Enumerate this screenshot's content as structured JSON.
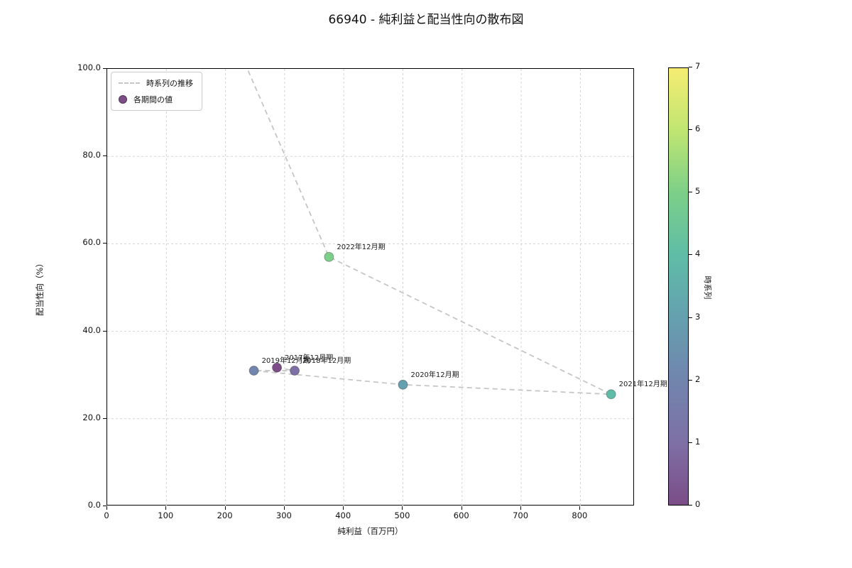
{
  "title": "66940 - 純利益と配当性向の散布図",
  "chart_data": {
    "type": "scatter",
    "title": "66940 - 純利益と配当性向の散布図",
    "xlabel": "純利益（百万円）",
    "ylabel": "配当性向（%）",
    "xlim": [
      0,
      892
    ],
    "ylim": [
      0,
      100
    ],
    "xticks": [
      0,
      100,
      200,
      300,
      400,
      500,
      600,
      700,
      800
    ],
    "yticks": [
      0,
      20,
      40,
      60,
      80,
      100
    ],
    "ytick_labels": [
      "0.0",
      "20.0",
      "40.0",
      "60.0",
      "80.0",
      "100.0"
    ],
    "grid": true,
    "grid_color": "#d4d4d4",
    "line_color": "#c6c6c6",
    "marker_edge_color": "rgba(0,0,0,0.28)",
    "legend": {
      "line_label": "時系列の推移",
      "point_label": "各期間の値",
      "position": "upper left"
    },
    "points": [
      {
        "label": "2017年12月期",
        "x": 287,
        "y": 31.7,
        "t": 0,
        "color": "#7c4d87"
      },
      {
        "label": "2018年12月期",
        "x": 317,
        "y": 31.0,
        "t": 1,
        "color": "#7e70a5"
      },
      {
        "label": "2019年12月期",
        "x": 248,
        "y": 31.0,
        "t": 2,
        "color": "#7185ad"
      },
      {
        "label": "2020年12月期",
        "x": 500,
        "y": 27.8,
        "t": 3,
        "color": "#65a0af"
      },
      {
        "label": "2021年12月期",
        "x": 852,
        "y": 25.6,
        "t": 4,
        "color": "#5fbda7"
      },
      {
        "label": "2022年12月期",
        "x": 375,
        "y": 57.0,
        "t": 5,
        "color": "#7ccf88"
      }
    ],
    "line_exit_top": {
      "x": 237,
      "y": 100
    },
    "colorbar": {
      "label": "時系列",
      "min": 0,
      "max": 7,
      "ticks": [
        0,
        1,
        2,
        3,
        4,
        5,
        6,
        7
      ],
      "colors": [
        "#7c4d87",
        "#7e70a5",
        "#7185ad",
        "#65a0af",
        "#5fbda7",
        "#7ccf88",
        "#c0e672",
        "#f5ec72"
      ]
    }
  }
}
